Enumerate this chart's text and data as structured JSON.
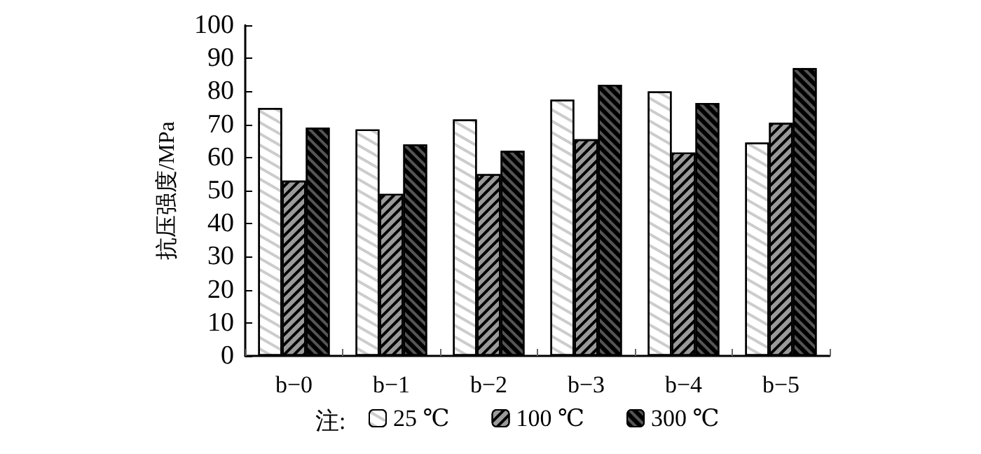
{
  "chart_data": {
    "type": "bar",
    "ylabel": "抗压强度/MPa",
    "legend_title": "注:",
    "categories": [
      "b−0",
      "b−1",
      "b−2",
      "b−3",
      "b−4",
      "b−5"
    ],
    "series": [
      {
        "name": "25 ℃",
        "color": "#ffffff",
        "values": [
          75,
          68.5,
          71.5,
          77.5,
          80,
          64.5
        ]
      },
      {
        "name": "100 ℃",
        "color": "#9a9a9a",
        "values": [
          53,
          49,
          55,
          65.5,
          61.5,
          70.5
        ]
      },
      {
        "name": "300 ℃",
        "color": "#555555",
        "values": [
          69,
          64,
          62,
          82,
          76.5,
          87
        ]
      }
    ],
    "ylim": [
      0,
      100
    ],
    "yticks": [
      0,
      10,
      20,
      30,
      40,
      50,
      60,
      70,
      80,
      90,
      100
    ],
    "grid": false,
    "legend": "bottom"
  }
}
